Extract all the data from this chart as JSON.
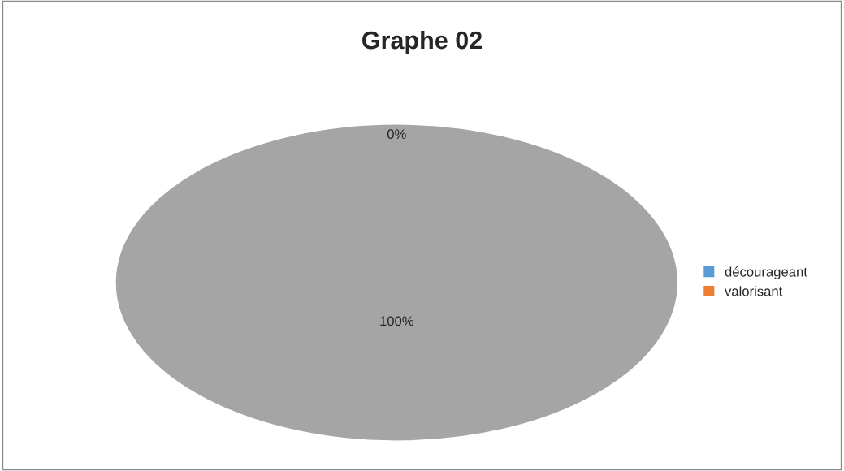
{
  "chart_data": {
    "type": "pie",
    "title": "Graphe 02",
    "categories": [
      "décourageant",
      "valorisant",
      null
    ],
    "values": [
      0,
      0,
      100
    ],
    "colors": [
      "#5b9bd5",
      "#ed7d31",
      "#a5a5a5"
    ],
    "value_labels": [
      "0%",
      null,
      "100%"
    ],
    "legend": "right"
  }
}
